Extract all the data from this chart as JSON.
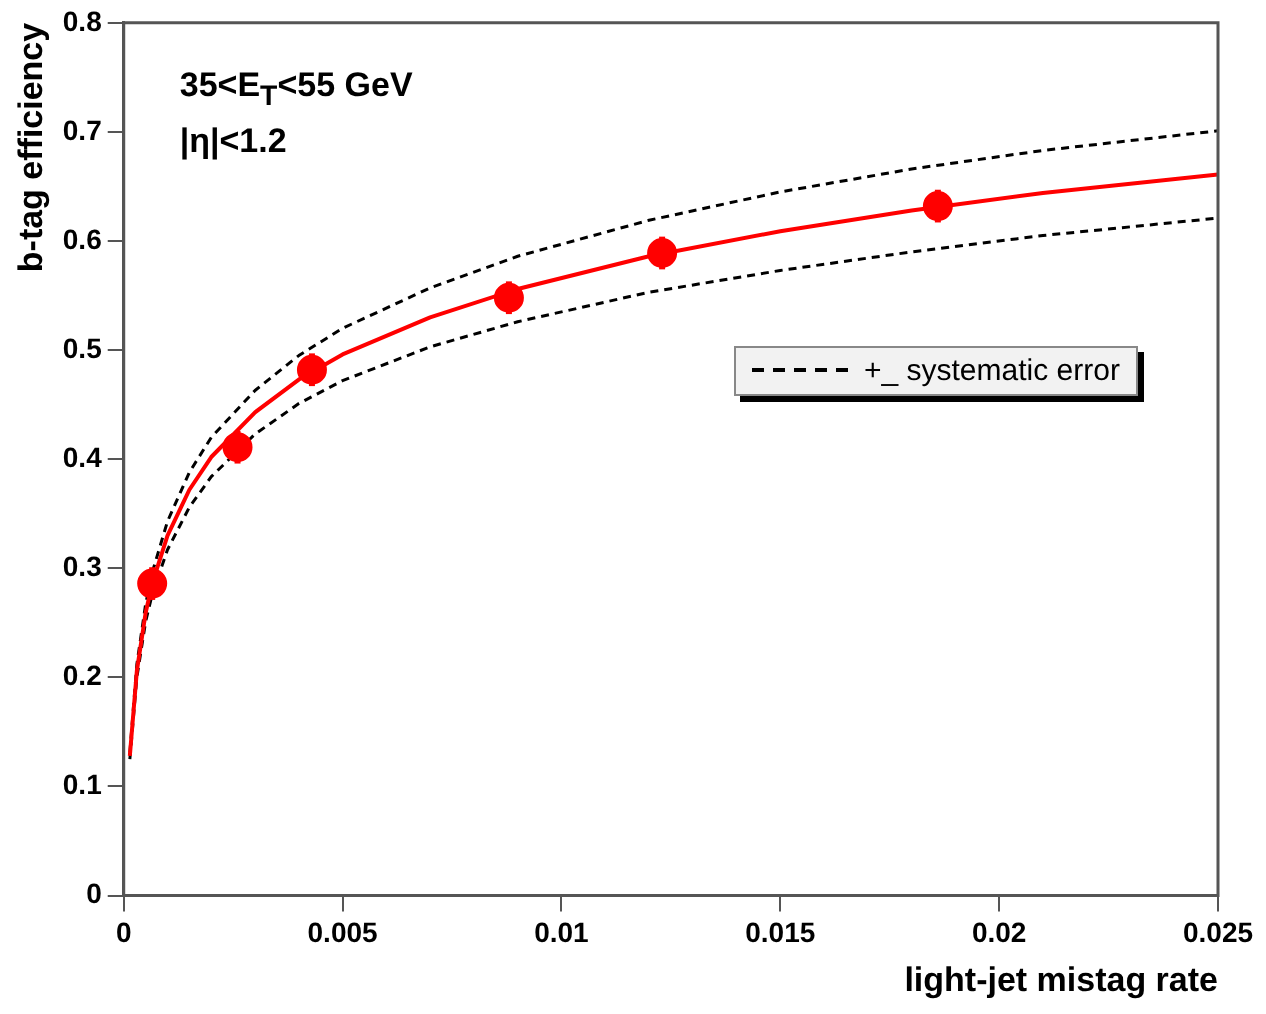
{
  "chart_data": {
    "type": "scatter",
    "xlabel": "light-jet mistag rate",
    "ylabel": "b-tag efficiency",
    "annotations": [
      "35<E$_{T}$<55 GeV",
      "|η|<1.2"
    ],
    "xlim": [
      0,
      0.025
    ],
    "xticks": [
      0,
      0.005,
      0.01,
      0.015,
      0.02,
      0.025
    ],
    "ylim": [
      0,
      0.8
    ],
    "yticks": [
      0,
      0.1,
      0.2,
      0.3,
      0.4,
      0.5,
      0.6,
      0.7,
      0.8
    ],
    "grid": false,
    "legend": "right",
    "series": [
      {
        "color": "#ff0000",
        "marker": "circle",
        "x": [
          0.00065,
          0.0026,
          0.0043,
          0.0088,
          0.0123,
          0.0186
        ],
        "values": [
          0.286,
          0.411,
          0.482,
          0.548,
          0.589,
          0.632
        ],
        "errors": [
          0.015,
          0.015,
          0.015,
          0.015,
          0.015,
          0.015
        ],
        "xerrors": [
          0.0003,
          0.0003,
          0.0003,
          0.0003,
          0.0003,
          0.0003
        ]
      },
      {
        "type": "line",
        "color": "#ff0000",
        "line_style": "solid",
        "x": [
          0.00014,
          0.0003,
          0.0005,
          0.00065,
          0.001,
          0.0015,
          0.002,
          0.003,
          0.004,
          0.005,
          0.007,
          0.009,
          0.012,
          0.015,
          0.018,
          0.021,
          0.025
        ],
        "values": [
          0.128,
          0.206,
          0.259,
          0.286,
          0.33,
          0.372,
          0.402,
          0.443,
          0.473,
          0.496,
          0.53,
          0.556,
          0.586,
          0.609,
          0.628,
          0.644,
          0.661
        ]
      },
      {
        "type": "line",
        "name": "+_ systematic error",
        "color": "#000000",
        "line_style": "dashed",
        "x": [
          0.00014,
          0.0003,
          0.0005,
          0.00065,
          0.001,
          0.0015,
          0.002,
          0.003,
          0.004,
          0.005,
          0.007,
          0.009,
          0.012,
          0.015,
          0.018,
          0.021,
          0.025
        ],
        "values": [
          0.131,
          0.212,
          0.267,
          0.296,
          0.343,
          0.388,
          0.42,
          0.463,
          0.495,
          0.52,
          0.557,
          0.586,
          0.619,
          0.645,
          0.666,
          0.683,
          0.701
        ]
      },
      {
        "type": "line",
        "color": "#000000",
        "line_style": "dashed",
        "x": [
          0.00014,
          0.0003,
          0.0005,
          0.00065,
          0.001,
          0.0015,
          0.002,
          0.003,
          0.004,
          0.005,
          0.007,
          0.009,
          0.012,
          0.015,
          0.018,
          0.021,
          0.025
        ],
        "values": [
          0.125,
          0.2,
          0.251,
          0.276,
          0.317,
          0.356,
          0.384,
          0.423,
          0.451,
          0.472,
          0.503,
          0.526,
          0.553,
          0.573,
          0.59,
          0.605,
          0.621
        ]
      }
    ]
  }
}
